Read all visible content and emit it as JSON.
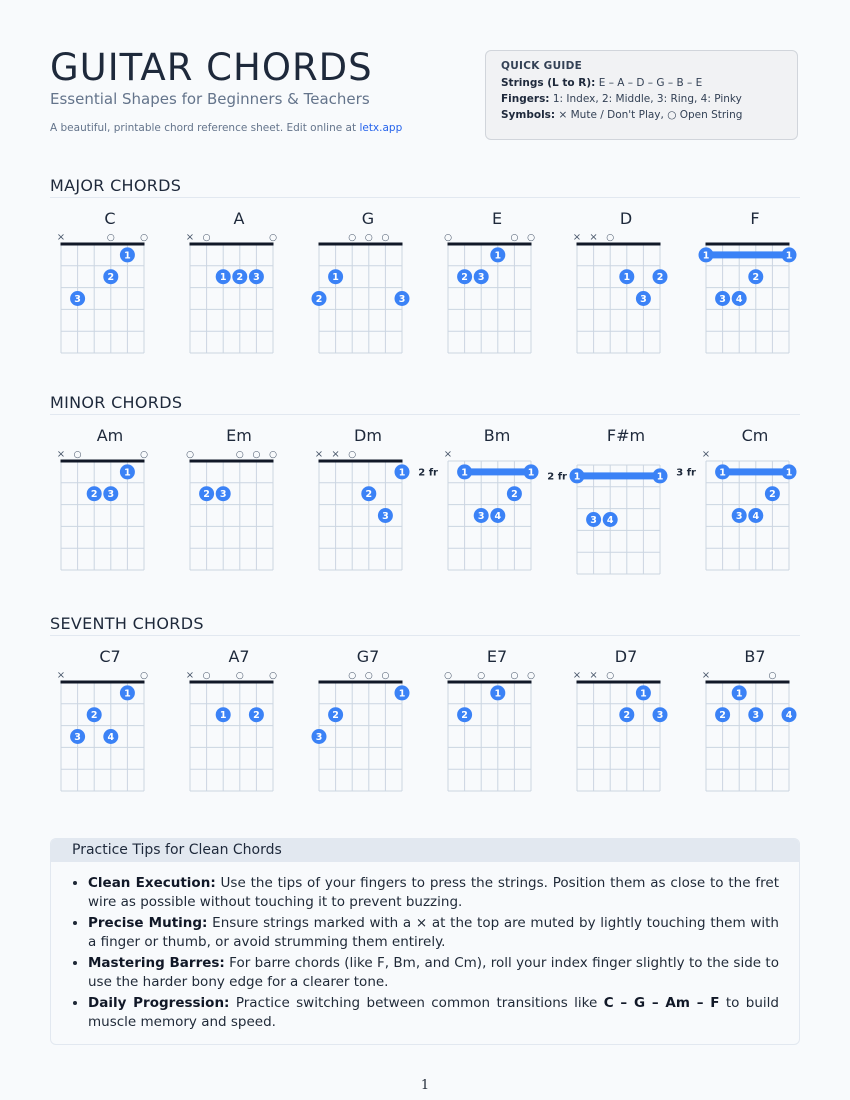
{
  "header": {
    "title": "GUITAR CHORDS",
    "subtitle": "Essential Shapes for Beginners & Teachers",
    "description": "A beautiful, printable chord reference sheet. Edit online at",
    "link_text": "letx.app"
  },
  "quick_guide": {
    "title": "QUICK GUIDE",
    "strings_label": "Strings (L to R):",
    "strings_value": "E – A – D – G – B – E",
    "fingers_label": "Fingers:",
    "fingers_value": "1: Index, 2: Middle, 3: Ring, 4: Pinky",
    "symbols_label": "Symbols:",
    "symbols_value": "× Mute / Don't Play, ○ Open String"
  },
  "colors": {
    "dot": "#3b82f6",
    "grid": "#cbd5e1",
    "nut": "#111827"
  },
  "sections": [
    {
      "title": "MAJOR CHORDS",
      "chords": [
        {
          "name": "C",
          "markers": [
            "x",
            "",
            "",
            "o",
            "",
            "o"
          ],
          "dots": [
            [
              5,
              1,
              "1"
            ],
            [
              4,
              2,
              "2"
            ],
            [
              2,
              3,
              "3"
            ]
          ]
        },
        {
          "name": "A",
          "markers": [
            "x",
            "o",
            "",
            "",
            "",
            "o"
          ],
          "dots": [
            [
              3,
              2,
              "1"
            ],
            [
              4,
              2,
              "2"
            ],
            [
              5,
              2,
              "3"
            ]
          ]
        },
        {
          "name": "G",
          "markers": [
            "",
            "",
            "o",
            "o",
            "o",
            ""
          ],
          "dots": [
            [
              2,
              2,
              "1"
            ],
            [
              1,
              3,
              "2"
            ],
            [
              6,
              3,
              "3"
            ]
          ]
        },
        {
          "name": "E",
          "markers": [
            "o",
            "",
            "",
            "",
            "o",
            "o"
          ],
          "dots": [
            [
              4,
              1,
              "1"
            ],
            [
              2,
              2,
              "2"
            ],
            [
              3,
              2,
              "3"
            ]
          ]
        },
        {
          "name": "D",
          "markers": [
            "x",
            "x",
            "o",
            "",
            "",
            ""
          ],
          "dots": [
            [
              4,
              2,
              "1"
            ],
            [
              6,
              2,
              "2"
            ],
            [
              5,
              3,
              "3"
            ]
          ]
        },
        {
          "name": "F",
          "markers": [
            "",
            "",
            "",
            "",
            "",
            ""
          ],
          "barre": {
            "fret": 1,
            "from": 1,
            "to": 6,
            "label": "1"
          },
          "dots": [
            [
              4,
              2,
              "2"
            ],
            [
              2,
              3,
              "3"
            ],
            [
              3,
              3,
              "4"
            ]
          ]
        }
      ]
    },
    {
      "title": "MINOR CHORDS",
      "chords": [
        {
          "name": "Am",
          "markers": [
            "x",
            "o",
            "",
            "",
            "",
            "o"
          ],
          "dots": [
            [
              5,
              1,
              "1"
            ],
            [
              3,
              2,
              "2"
            ],
            [
              4,
              2,
              "3"
            ]
          ]
        },
        {
          "name": "Em",
          "markers": [
            "o",
            "",
            "",
            "o",
            "o",
            "o"
          ],
          "dots": [
            [
              2,
              2,
              "2"
            ],
            [
              3,
              2,
              "3"
            ]
          ]
        },
        {
          "name": "Dm",
          "markers": [
            "x",
            "x",
            "o",
            "",
            "",
            ""
          ],
          "dots": [
            [
              6,
              1,
              "1"
            ],
            [
              4,
              2,
              "2"
            ],
            [
              5,
              3,
              "3"
            ]
          ]
        },
        {
          "name": "Bm",
          "markers": [
            "x",
            "",
            "",
            "",
            "",
            ""
          ],
          "fret_label": "2 fr",
          "barre": {
            "fret": 1,
            "from": 2,
            "to": 6,
            "label": "1"
          },
          "dots": [
            [
              5,
              2,
              "2"
            ],
            [
              3,
              3,
              "3"
            ],
            [
              4,
              3,
              "4"
            ]
          ]
        },
        {
          "name": "F#m",
          "markers": [
            "",
            "",
            "",
            "",
            "",
            ""
          ],
          "fret_label": "2 fr",
          "barre": {
            "fret": 1,
            "from": 1,
            "to": 6,
            "label": "1"
          },
          "dots": [
            [
              2,
              3,
              "3"
            ],
            [
              3,
              3,
              "4"
            ]
          ]
        },
        {
          "name": "Cm",
          "markers": [
            "x",
            "",
            "",
            "",
            "",
            ""
          ],
          "fret_label": "3 fr",
          "barre": {
            "fret": 1,
            "from": 2,
            "to": 6,
            "label": "1"
          },
          "dots": [
            [
              5,
              2,
              "2"
            ],
            [
              3,
              3,
              "3"
            ],
            [
              4,
              3,
              "4"
            ]
          ]
        }
      ]
    },
    {
      "title": "SEVENTH CHORDS",
      "chords": [
        {
          "name": "C7",
          "markers": [
            "x",
            "",
            "",
            "",
            "",
            "o"
          ],
          "dots": [
            [
              5,
              1,
              "1"
            ],
            [
              3,
              2,
              "2"
            ],
            [
              2,
              3,
              "3"
            ],
            [
              4,
              3,
              "4"
            ]
          ]
        },
        {
          "name": "A7",
          "markers": [
            "x",
            "o",
            "",
            "o",
            "",
            "o"
          ],
          "dots": [
            [
              3,
              2,
              "1"
            ],
            [
              5,
              2,
              "2"
            ]
          ]
        },
        {
          "name": "G7",
          "markers": [
            "",
            "",
            "o",
            "o",
            "o",
            ""
          ],
          "dots": [
            [
              6,
              1,
              "1"
            ],
            [
              2,
              2,
              "2"
            ],
            [
              1,
              3,
              "3"
            ]
          ]
        },
        {
          "name": "E7",
          "markers": [
            "o",
            "",
            "o",
            "",
            "o",
            "o"
          ],
          "dots": [
            [
              4,
              1,
              "1"
            ],
            [
              2,
              2,
              "2"
            ]
          ]
        },
        {
          "name": "D7",
          "markers": [
            "x",
            "x",
            "o",
            "",
            "",
            ""
          ],
          "dots": [
            [
              5,
              1,
              "1"
            ],
            [
              4,
              2,
              "2"
            ],
            [
              6,
              2,
              "3"
            ]
          ]
        },
        {
          "name": "B7",
          "markers": [
            "x",
            "",
            "",
            "",
            "o",
            ""
          ],
          "dots": [
            [
              3,
              1,
              "1"
            ],
            [
              2,
              2,
              "2"
            ],
            [
              4,
              2,
              "3"
            ],
            [
              6,
              2,
              "4"
            ]
          ]
        }
      ]
    }
  ],
  "tips": {
    "title": "Practice Tips for Clean Chords",
    "items": [
      {
        "label": "Clean Execution:",
        "text": " Use the tips of your fingers to press the strings. Position them as close to the fret wire as possible without touching it to prevent buzzing."
      },
      {
        "label": "Precise Muting:",
        "text": " Ensure strings marked with a × at the top are muted by lightly touching them with a finger or thumb, or avoid strumming them entirely."
      },
      {
        "label": "Mastering Barres:",
        "text": " For barre chords (like F, Bm, and Cm), roll your index finger slightly to the side to use the harder bony edge for a clearer tone."
      }
    ],
    "last_item": {
      "label": "Daily Progression:",
      "text_before": " Practice switching between common transitions like ",
      "progression": "C – G – Am – F",
      "text_after": " to build muscle memory and speed."
    }
  },
  "page_number": "1"
}
